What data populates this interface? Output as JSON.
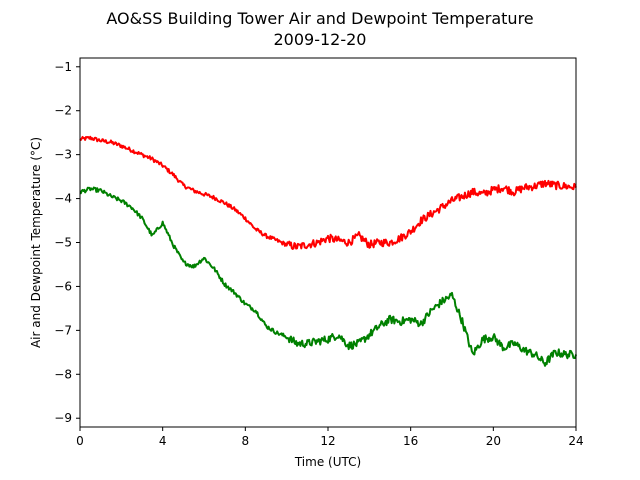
{
  "chart_data": {
    "type": "line",
    "title": "AO&SS Building Tower Air and Dewpoint Temperature",
    "subtitle": "2009-12-20",
    "xlabel": "Time (UTC)",
    "ylabel": "Air and Dewpoint Temperature (°C)",
    "xlim": [
      0,
      24
    ],
    "ylim": [
      -9.2,
      -0.8
    ],
    "x_ticks": [
      0,
      4,
      8,
      12,
      16,
      20,
      24
    ],
    "y_ticks": [
      -9,
      -8,
      -7,
      -6,
      -5,
      -4,
      -3,
      -2,
      -1
    ],
    "grid": false,
    "legend": "none",
    "series": [
      {
        "color": "#ff0000",
        "x": [
          0,
          0.5,
          1,
          1.5,
          2,
          2.5,
          3,
          3.5,
          4,
          4.5,
          5,
          5.5,
          6,
          6.5,
          7,
          7.5,
          8,
          8.5,
          9,
          9.5,
          10,
          10.5,
          11,
          11.5,
          12,
          12.5,
          13,
          13.5,
          14,
          14.5,
          15,
          15.5,
          16,
          16.5,
          17,
          17.5,
          18,
          18.5,
          19,
          19.5,
          20,
          20.5,
          21,
          21.5,
          22,
          22.5,
          23,
          23.5,
          24
        ],
        "y": [
          -2.65,
          -2.62,
          -2.68,
          -2.72,
          -2.8,
          -2.9,
          -3.0,
          -3.1,
          -3.25,
          -3.45,
          -3.7,
          -3.82,
          -3.9,
          -3.98,
          -4.1,
          -4.25,
          -4.45,
          -4.7,
          -4.85,
          -4.95,
          -5.05,
          -5.1,
          -5.05,
          -5.0,
          -4.9,
          -4.95,
          -5.0,
          -4.85,
          -5.05,
          -5.0,
          -5.0,
          -4.9,
          -4.75,
          -4.5,
          -4.35,
          -4.2,
          -4.05,
          -3.95,
          -3.85,
          -3.9,
          -3.8,
          -3.75,
          -3.85,
          -3.75,
          -3.72,
          -3.65,
          -3.7,
          -3.72,
          -3.75
        ]
      },
      {
        "color": "#008000",
        "x": [
          0,
          0.5,
          1,
          1.5,
          2,
          2.5,
          3,
          3.5,
          4,
          4.5,
          5,
          5.5,
          6,
          6.5,
          7,
          7.5,
          8,
          8.5,
          9,
          9.5,
          10,
          10.5,
          11,
          11.5,
          12,
          12.5,
          13,
          13.5,
          14,
          14.5,
          15,
          15.5,
          16,
          16.5,
          17,
          17.5,
          18,
          18.5,
          19,
          19.5,
          20,
          20.5,
          21,
          21.5,
          22,
          22.5,
          23,
          23.5,
          24
        ],
        "y": [
          -3.85,
          -3.78,
          -3.82,
          -3.95,
          -4.05,
          -4.2,
          -4.45,
          -4.85,
          -4.55,
          -5.05,
          -5.45,
          -5.55,
          -5.35,
          -5.6,
          -5.95,
          -6.15,
          -6.4,
          -6.55,
          -6.9,
          -7.05,
          -7.15,
          -7.3,
          -7.3,
          -7.25,
          -7.2,
          -7.1,
          -7.35,
          -7.3,
          -7.1,
          -6.9,
          -6.75,
          -6.8,
          -6.75,
          -6.85,
          -6.55,
          -6.35,
          -6.2,
          -6.8,
          -7.55,
          -7.2,
          -7.15,
          -7.4,
          -7.3,
          -7.45,
          -7.55,
          -7.75,
          -7.5,
          -7.55,
          -7.55
        ]
      }
    ]
  }
}
